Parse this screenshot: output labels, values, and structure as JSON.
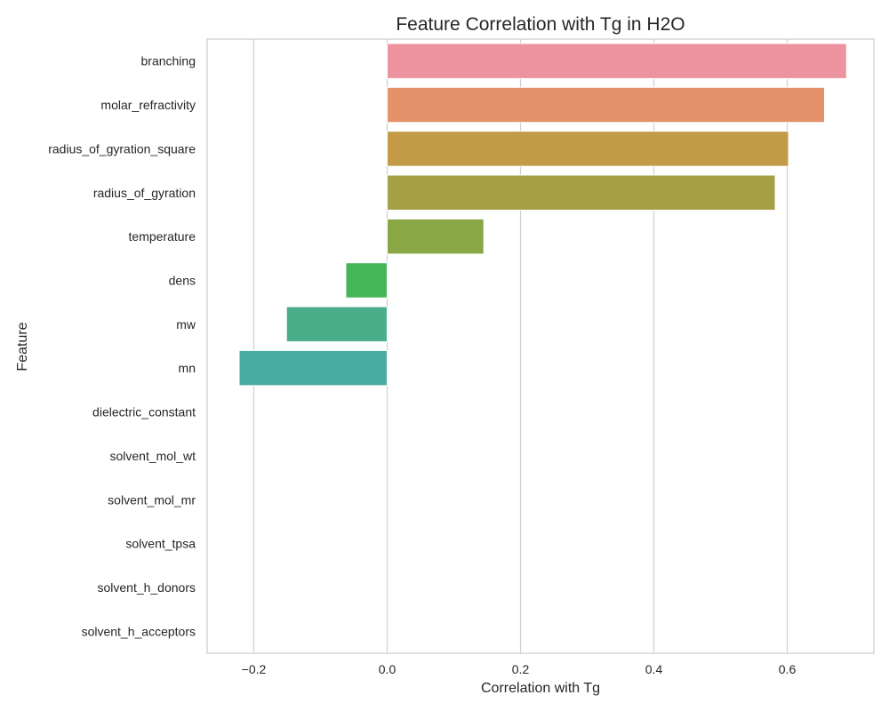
{
  "chart_data": {
    "type": "bar",
    "orientation": "horizontal",
    "title": "Feature Correlation with Tg in H2O",
    "xlabel": "Correlation with Tg",
    "ylabel": "Feature",
    "xlim": [
      -0.27,
      0.73
    ],
    "xticks": [
      -0.2,
      0.0,
      0.2,
      0.4,
      0.6
    ],
    "xtick_labels": [
      "−0.2",
      "0.0",
      "0.2",
      "0.4",
      "0.6"
    ],
    "grid": "vertical",
    "categories": [
      "branching",
      "molar_refractivity",
      "radius_of_gyration_square",
      "radius_of_gyration",
      "temperature",
      "dens",
      "mw",
      "mn",
      "dielectric_constant",
      "solvent_mol_wt",
      "solvent_mol_mr",
      "solvent_tpsa",
      "solvent_h_donors",
      "solvent_h_acceptors"
    ],
    "values": [
      0.689,
      0.656,
      0.602,
      0.582,
      0.145,
      -0.062,
      -0.151,
      -0.222,
      null,
      null,
      null,
      null,
      null,
      null
    ],
    "colors": [
      "#ed939f",
      "#e4926a",
      "#c39b46",
      "#a6a045",
      "#89a845",
      "#45b658",
      "#4aae8b",
      "#48aca4",
      null,
      null,
      null,
      null,
      null,
      null
    ]
  }
}
